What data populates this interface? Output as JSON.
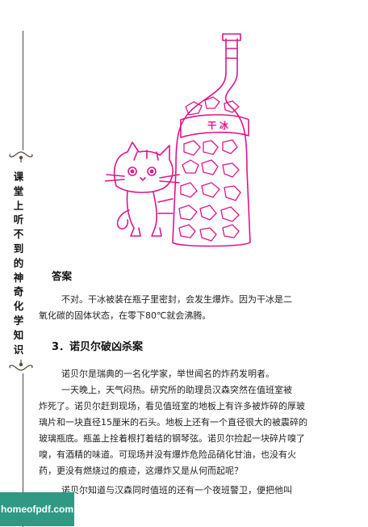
{
  "sidebar": {
    "title_chars": [
      "课",
      "堂",
      "上",
      "听",
      "不",
      "到",
      "的",
      "神",
      "奇",
      "化",
      "学",
      "知",
      "识"
    ]
  },
  "illustration": {
    "bottle_label": "干  冰"
  },
  "answer": {
    "heading": "答案",
    "lines": [
      "不对。干冰被装在瓶子里密封，会发生爆炸。因为干冰是二",
      "氧化碳的固体状态，在零下80℃就会沸腾。"
    ]
  },
  "section": {
    "heading": "3．诺贝尔破凶杀案",
    "lines": [
      "诺贝尔是瑞典的一名化学家，举世闻名的炸药发明者。",
      "一天晚上，天气闷热。研究所的助理员汉森突然在值班室被",
      "炸死了。诺贝尔赶到现场，看见值班室的地板上有许多被炸碎的厚玻",
      "璃片和一块直径15厘米的石头。地板上还有一个直径很大的被震碎的",
      "玻璃瓶底。瓶盖上拴着根打着结的钢琴弦。诺贝尔捡起一块碎片嗅了",
      "嗅，有酒精的味道。可现场并没有爆炸危险品硝化甘油，也没有火",
      "药，更没有燃烧过的痕迹，这爆炸又是从何而起呢？",
      "诺贝尔知道与汉森同时值班的还有一个夜班警卫，便把他叫"
    ]
  },
  "watermark": {
    "text": "homeofpdf.com"
  },
  "colors": {
    "drawing": "#e0148c",
    "watermark_bg": "#2e9a86"
  }
}
